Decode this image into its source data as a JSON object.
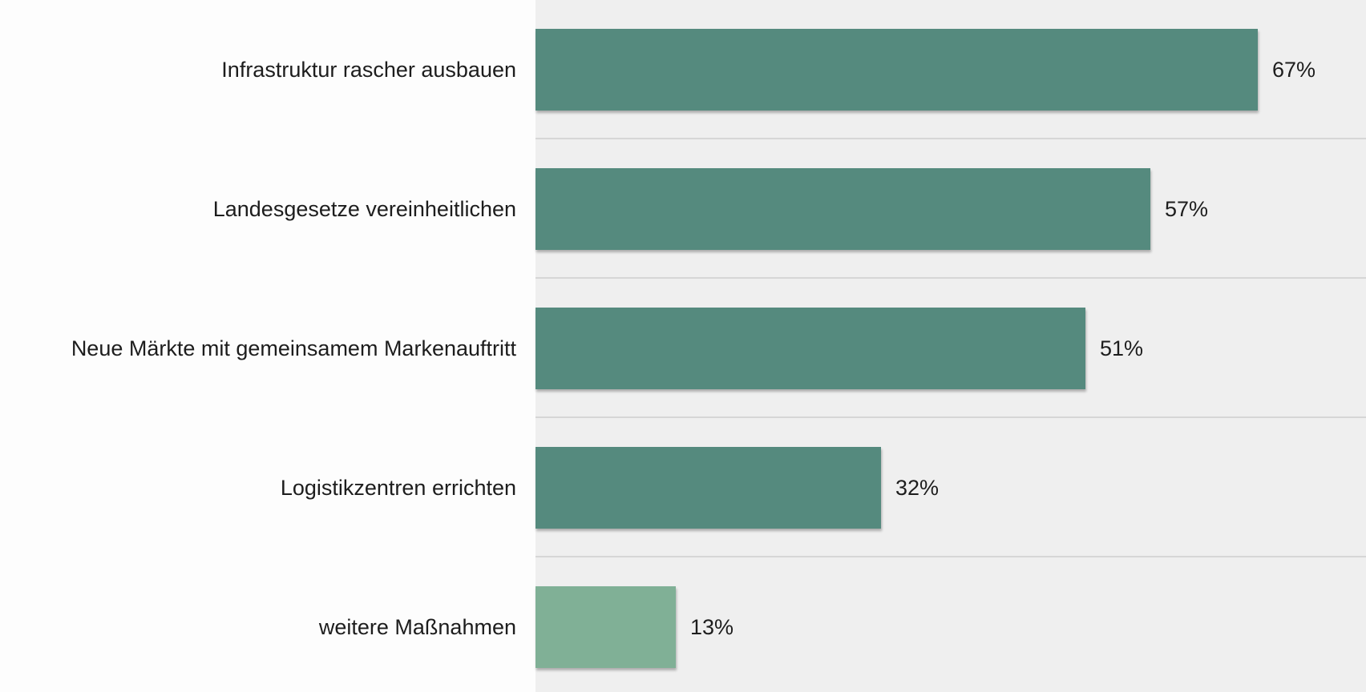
{
  "chart_data": {
    "type": "bar",
    "orientation": "horizontal",
    "categories": [
      "Infrastruktur rascher ausbauen",
      "Landesgesetze vereinheitlichen",
      "Neue Märkte mit gemeinsamem Markenauftritt",
      "Logistikzentren errichten",
      "weitere Maßnahmen"
    ],
    "values": [
      67,
      57,
      51,
      32,
      13
    ],
    "value_labels": [
      "67%",
      "57%",
      "51%",
      "32%",
      "13%"
    ],
    "unit": "%",
    "xlim": [
      0,
      77
    ],
    "grid": false,
    "legend": "none",
    "colors": {
      "primary_bar": "#558a7e",
      "other_bar": "#80b096",
      "plot_background": "#efefef",
      "separator": "#d6d6d6"
    }
  }
}
